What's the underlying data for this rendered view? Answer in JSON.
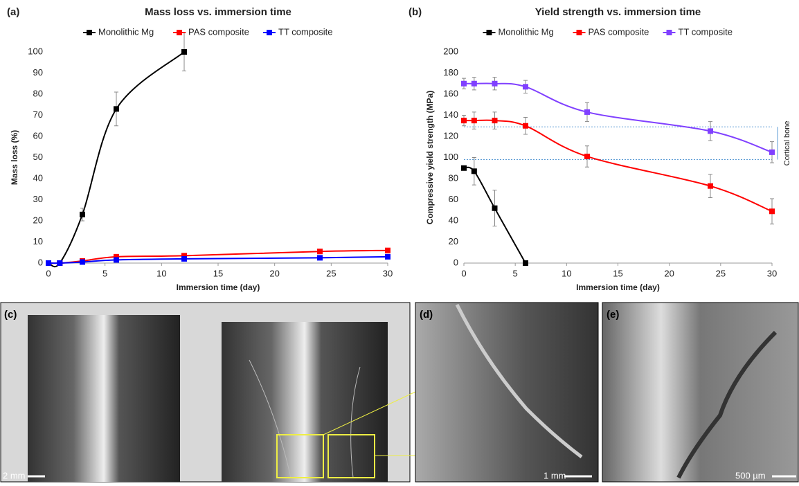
{
  "chart_data": [
    {
      "type": "line",
      "panel": "(a)",
      "title": "Mass loss vs. immersion time",
      "x_label": "Immersion time (day)",
      "y_label": "Mass loss (%)",
      "x": [
        0,
        1,
        3,
        6,
        12,
        24,
        30
      ],
      "xlim": [
        0,
        30
      ],
      "xticks": [
        0,
        5,
        10,
        15,
        20,
        25,
        30
      ],
      "ylim": [
        0,
        100
      ],
      "yticks": [
        0,
        10,
        20,
        30,
        40,
        50,
        60,
        70,
        80,
        90,
        100
      ],
      "grid": false,
      "series": [
        {
          "name": "Monolithic Mg",
          "color": "#000000",
          "values": [
            0,
            0,
            23,
            73,
            100,
            null,
            null
          ],
          "errors": [
            0,
            0,
            3,
            8,
            9,
            null,
            null
          ]
        },
        {
          "name": "PAS composite",
          "color": "#ff0000",
          "values": [
            0,
            0,
            1,
            3,
            3.5,
            5.5,
            6
          ]
        },
        {
          "name": "TT composite",
          "color": "#0000ff",
          "values": [
            0,
            0,
            0.5,
            1.5,
            2,
            2.5,
            3
          ]
        }
      ]
    },
    {
      "type": "line",
      "panel": "(b)",
      "title": "Yield strength vs. immersion time",
      "x_label": "Immersion time (day)",
      "y_label": "Compressive yield strength (MPa)",
      "x": [
        0,
        1,
        3,
        6,
        12,
        24,
        30
      ],
      "xlim": [
        0,
        30
      ],
      "xticks": [
        0,
        5,
        10,
        15,
        20,
        25,
        30
      ],
      "ylim": [
        0,
        200
      ],
      "yticks": [
        0,
        20,
        40,
        60,
        80,
        100,
        120,
        140,
        160,
        180,
        200
      ],
      "grid": false,
      "series": [
        {
          "name": "Monolithic Mg",
          "color": "#000000",
          "values": [
            90,
            87,
            52,
            0,
            null,
            null,
            null
          ],
          "errors": [
            2,
            13,
            17,
            0,
            null,
            null,
            null
          ]
        },
        {
          "name": "PAS composite",
          "color": "#ff0000",
          "values": [
            135,
            135,
            135,
            130,
            101,
            73,
            49
          ],
          "errors": [
            5,
            8,
            8,
            8,
            10,
            11,
            12
          ]
        },
        {
          "name": "TT composite",
          "color": "#8040ff",
          "values": [
            170,
            170,
            170,
            167,
            143,
            125,
            105
          ],
          "errors": [
            5,
            6,
            6,
            6,
            9,
            9,
            10
          ]
        }
      ],
      "band": {
        "text": "Cortical bone",
        "range": [
          98,
          129
        ]
      }
    }
  ],
  "photos": [
    {
      "label": "(c)",
      "scale": "2 mm"
    },
    {
      "label": "(d)",
      "scale": "1 mm"
    },
    {
      "label": "(e)",
      "scale": "500 µm"
    }
  ]
}
